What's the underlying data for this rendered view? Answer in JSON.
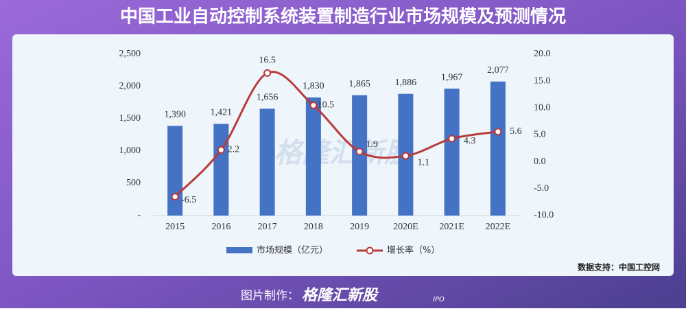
{
  "chart_data": {
    "type": "bar",
    "title": "中国工业自动控制系统装置制造行业市场规模及预测情况",
    "categories": [
      "2015",
      "2016",
      "2017",
      "2018",
      "2019",
      "2020E",
      "2021E",
      "2022E"
    ],
    "series": [
      {
        "name": "市场规模（亿元）",
        "type": "bar",
        "color": "#4472c4",
        "values": [
          1390,
          1421,
          1656,
          1830,
          1865,
          1886,
          1967,
          2077
        ],
        "value_labels": [
          "1,390",
          "1,421",
          "1,656",
          "1,830",
          "1,865",
          "1,886",
          "1,967",
          "2,077"
        ]
      },
      {
        "name": "增长率（%）",
        "type": "line",
        "axis": "y2",
        "color": "#b83b3b",
        "values": [
          -6.5,
          2.2,
          16.5,
          10.5,
          1.9,
          1.1,
          4.3,
          5.6
        ]
      }
    ],
    "ylim": [
      0,
      2500
    ],
    "yticks": [
      {
        "value": 0,
        "label": "-"
      },
      500,
      {
        "value": 1000,
        "label": "1,000"
      },
      {
        "value": 1500,
        "label": "1,500"
      },
      {
        "value": 2000,
        "label": "2,000"
      },
      {
        "value": 2500,
        "label": "2,500"
      }
    ],
    "y2lim": [
      -10,
      20
    ],
    "y2ticks": [
      {
        "value": -10,
        "label": "-10.0"
      },
      {
        "value": -5,
        "label": "-5.0"
      },
      {
        "value": 0,
        "label": "0.0"
      },
      {
        "value": 5,
        "label": "5.0"
      },
      {
        "value": 10,
        "label": "10.0"
      },
      {
        "value": 15,
        "label": "15.0"
      },
      {
        "value": 20,
        "label": "20.0"
      }
    ],
    "grid": false,
    "legend": "bottom"
  },
  "source": "数据支持：中国工控网",
  "footer": {
    "label": "图片制作：",
    "brand": "格隆汇新股",
    "brand_tag": "IPO"
  }
}
